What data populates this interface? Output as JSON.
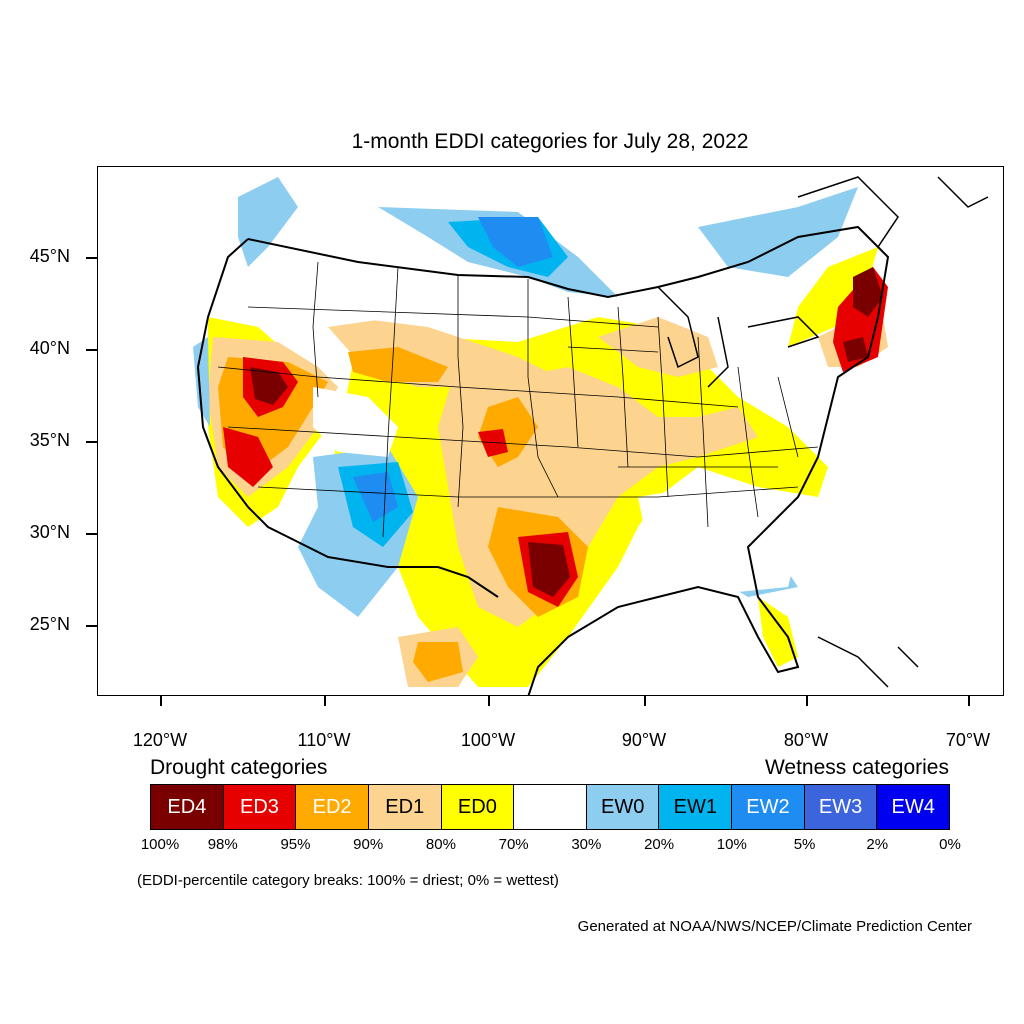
{
  "title": "1-month EDDI categories for July 28, 2022",
  "lat_labels": [
    "45°N",
    "40°N",
    "35°N",
    "30°N",
    "25°N"
  ],
  "lon_labels": [
    "120°W",
    "110°W",
    "100°W",
    "90°W",
    "80°W",
    "70°W"
  ],
  "legend": {
    "drought_heading": "Drought categories",
    "wetness_heading": "Wetness categories",
    "categories": [
      {
        "label": "ED4",
        "color": "#7a0000",
        "text_color": "#ffffff"
      },
      {
        "label": "ED3",
        "color": "#e60000",
        "text_color": "#ffffff"
      },
      {
        "label": "ED2",
        "color": "#ffaa00",
        "text_color": "#ffffff"
      },
      {
        "label": "ED1",
        "color": "#fcd38f",
        "text_color": "#000000"
      },
      {
        "label": "ED0",
        "color": "#ffff00",
        "text_color": "#000000"
      },
      {
        "label": "",
        "color": "#ffffff",
        "text_color": "#000000"
      },
      {
        "label": "EW0",
        "color": "#8ccdf0",
        "text_color": "#000000"
      },
      {
        "label": "EW1",
        "color": "#00b4f0",
        "text_color": "#000000"
      },
      {
        "label": "EW2",
        "color": "#1e8cf0",
        "text_color": "#ffffff"
      },
      {
        "label": "EW3",
        "color": "#3c64dc",
        "text_color": "#ffffff"
      },
      {
        "label": "EW4",
        "color": "#0000f0",
        "text_color": "#ffffff"
      }
    ],
    "percentiles": [
      "100%",
      "98%",
      "95%",
      "90%",
      "80%",
      "70%",
      "30%",
      "20%",
      "10%",
      "5%",
      "2%",
      "0%"
    ]
  },
  "note": "(EDDI-percentile category breaks: 100% = driest; 0% = wettest)",
  "credit": "Generated at NOAA/NWS/NCEP/Climate Prediction Center"
}
